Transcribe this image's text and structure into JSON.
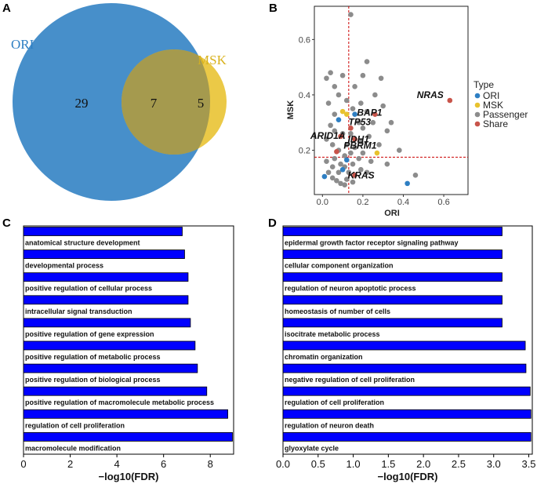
{
  "colors": {
    "ori": "#2e7fc3",
    "msk": "#e8c22e",
    "passenger": "#8c8c8c",
    "share": "#c8544a",
    "bar_fill": "#0000ff",
    "bar_stroke": "#000000",
    "threshold": "#cc0000",
    "ori_text": "#2e7fc3",
    "msk_text": "#d9b21e"
  },
  "chart_data": [
    {
      "panel": "A",
      "type": "venn",
      "sets": [
        {
          "name": "ORI",
          "only": 29
        },
        {
          "name": "MSK",
          "only": 5
        }
      ],
      "intersection": 7,
      "total_ori": 36,
      "total_msk": 12
    },
    {
      "panel": "B",
      "type": "scatter",
      "xlabel": "ORI",
      "ylabel": "MSK",
      "xlim": [
        -0.04,
        0.72
      ],
      "ylim": [
        0.04,
        0.72
      ],
      "xticks": [
        "0.0",
        "0.2",
        "0.4",
        "0.6"
      ],
      "yticks": [
        "0.2",
        "0.4",
        "0.6"
      ],
      "threshold_x": 0.13,
      "threshold_y": 0.175,
      "legend_title": "Type",
      "legend_position": "right",
      "legend": [
        "ORI",
        "MSK",
        "Passenger",
        "Share"
      ],
      "labeled_genes": [
        {
          "gene": "NRAS",
          "x": 0.63,
          "y": 0.38,
          "type": "Share"
        },
        {
          "gene": "BAP1",
          "x": 0.26,
          "y": 0.33,
          "type": "Share"
        },
        {
          "gene": "TP53",
          "x": 0.14,
          "y": 0.28,
          "type": "Share"
        },
        {
          "gene": "IDH1",
          "x": 0.16,
          "y": 0.24,
          "type": "Share"
        },
        {
          "gene": "ARID1A",
          "x": 0.09,
          "y": 0.25,
          "type": "Share"
        },
        {
          "gene": "PBRM1",
          "x": 0.07,
          "y": 0.195,
          "type": "Share"
        },
        {
          "gene": "KRAS",
          "x": 0.16,
          "y": 0.11,
          "type": "Share"
        }
      ],
      "points": [
        {
          "x": 0.14,
          "y": 0.69,
          "type": "Passenger"
        },
        {
          "x": 0.22,
          "y": 0.52,
          "type": "Passenger"
        },
        {
          "x": 0.04,
          "y": 0.48,
          "type": "Passenger"
        },
        {
          "x": 0.02,
          "y": 0.46,
          "type": "Passenger"
        },
        {
          "x": 0.1,
          "y": 0.47,
          "type": "Passenger"
        },
        {
          "x": 0.2,
          "y": 0.47,
          "type": "Passenger"
        },
        {
          "x": 0.29,
          "y": 0.46,
          "type": "Passenger"
        },
        {
          "x": 0.06,
          "y": 0.43,
          "type": "Passenger"
        },
        {
          "x": 0.16,
          "y": 0.43,
          "type": "Passenger"
        },
        {
          "x": 0.08,
          "y": 0.4,
          "type": "Passenger"
        },
        {
          "x": 0.26,
          "y": 0.4,
          "type": "Passenger"
        },
        {
          "x": 0.12,
          "y": 0.38,
          "type": "Passenger"
        },
        {
          "x": 0.03,
          "y": 0.37,
          "type": "Passenger"
        },
        {
          "x": 0.19,
          "y": 0.37,
          "type": "Passenger"
        },
        {
          "x": 0.3,
          "y": 0.36,
          "type": "Passenger"
        },
        {
          "x": 0.15,
          "y": 0.35,
          "type": "Passenger"
        },
        {
          "x": 0.22,
          "y": 0.34,
          "type": "Passenger"
        },
        {
          "x": 0.06,
          "y": 0.33,
          "type": "Passenger"
        },
        {
          "x": 0.1,
          "y": 0.34,
          "type": "MSK"
        },
        {
          "x": 0.16,
          "y": 0.33,
          "type": "ORI"
        },
        {
          "x": 0.12,
          "y": 0.33,
          "type": "MSK"
        },
        {
          "x": 0.08,
          "y": 0.31,
          "type": "ORI"
        },
        {
          "x": 0.34,
          "y": 0.3,
          "type": "Passenger"
        },
        {
          "x": 0.25,
          "y": 0.3,
          "type": "Passenger"
        },
        {
          "x": 0.18,
          "y": 0.3,
          "type": "Passenger"
        },
        {
          "x": 0.04,
          "y": 0.29,
          "type": "Passenger"
        },
        {
          "x": 0.2,
          "y": 0.28,
          "type": "Passenger"
        },
        {
          "x": 0.32,
          "y": 0.27,
          "type": "Passenger"
        },
        {
          "x": 0.06,
          "y": 0.27,
          "type": "Passenger"
        },
        {
          "x": 0.14,
          "y": 0.26,
          "type": "Passenger"
        },
        {
          "x": 0.1,
          "y": 0.26,
          "type": "Passenger"
        },
        {
          "x": 0.23,
          "y": 0.25,
          "type": "Passenger"
        },
        {
          "x": 0.02,
          "y": 0.24,
          "type": "Passenger"
        },
        {
          "x": 0.19,
          "y": 0.23,
          "type": "Passenger"
        },
        {
          "x": 0.28,
          "y": 0.22,
          "type": "Passenger"
        },
        {
          "x": 0.05,
          "y": 0.22,
          "type": "Passenger"
        },
        {
          "x": 0.12,
          "y": 0.22,
          "type": "Passenger"
        },
        {
          "x": 0.16,
          "y": 0.21,
          "type": "Passenger"
        },
        {
          "x": 0.27,
          "y": 0.19,
          "type": "MSK"
        },
        {
          "x": 0.38,
          "y": 0.2,
          "type": "Passenger"
        },
        {
          "x": 0.08,
          "y": 0.2,
          "type": "Passenger"
        },
        {
          "x": 0.14,
          "y": 0.19,
          "type": "Passenger"
        },
        {
          "x": 0.2,
          "y": 0.19,
          "type": "Passenger"
        },
        {
          "x": 0.11,
          "y": 0.18,
          "type": "Passenger"
        },
        {
          "x": 0.06,
          "y": 0.17,
          "type": "Passenger"
        },
        {
          "x": 0.18,
          "y": 0.17,
          "type": "Passenger"
        },
        {
          "x": 0.12,
          "y": 0.165,
          "type": "ORI"
        },
        {
          "x": 0.02,
          "y": 0.16,
          "type": "Passenger"
        },
        {
          "x": 0.24,
          "y": 0.16,
          "type": "Passenger"
        },
        {
          "x": 0.09,
          "y": 0.15,
          "type": "Passenger"
        },
        {
          "x": 0.15,
          "y": 0.15,
          "type": "Passenger"
        },
        {
          "x": 0.32,
          "y": 0.15,
          "type": "Passenger"
        },
        {
          "x": 0.05,
          "y": 0.14,
          "type": "Passenger"
        },
        {
          "x": 0.11,
          "y": 0.14,
          "type": "Passenger"
        },
        {
          "x": 0.19,
          "y": 0.13,
          "type": "Passenger"
        },
        {
          "x": 0.03,
          "y": 0.12,
          "type": "Passenger"
        },
        {
          "x": 0.08,
          "y": 0.12,
          "type": "Passenger"
        },
        {
          "x": 0.13,
          "y": 0.12,
          "type": "Passenger"
        },
        {
          "x": 0.22,
          "y": 0.12,
          "type": "Passenger"
        },
        {
          "x": 0.1,
          "y": 0.13,
          "type": "ORI"
        },
        {
          "x": 0.01,
          "y": 0.105,
          "type": "ORI"
        },
        {
          "x": 0.05,
          "y": 0.1,
          "type": "Passenger"
        },
        {
          "x": 0.07,
          "y": 0.09,
          "type": "Passenger"
        },
        {
          "x": 0.12,
          "y": 0.095,
          "type": "Passenger"
        },
        {
          "x": 0.15,
          "y": 0.085,
          "type": "Passenger"
        },
        {
          "x": 0.09,
          "y": 0.08,
          "type": "Passenger"
        },
        {
          "x": 0.42,
          "y": 0.08,
          "type": "ORI"
        },
        {
          "x": 0.46,
          "y": 0.11,
          "type": "Passenger"
        },
        {
          "x": 0.11,
          "y": 0.075,
          "type": "Passenger"
        }
      ]
    },
    {
      "panel": "C",
      "type": "bar",
      "orientation": "horizontal",
      "xlabel": "−log10(FDR)",
      "xlim": [
        0,
        9
      ],
      "xticks": [
        0,
        2,
        4,
        6,
        8
      ],
      "categories": [
        "anatomical structure development",
        "developmental process",
        "positive regulation of cellular process",
        "intracellular signal transduction",
        "positive regulation of gene expression",
        "positive regulation of metabolic process",
        "positive regulation of biological process",
        "positive regulation of macromolecule metabolic process",
        "regulation of cell proliferation",
        "macromolecule modification"
      ],
      "values": [
        6.8,
        6.9,
        7.05,
        7.05,
        7.15,
        7.35,
        7.45,
        7.85,
        8.75,
        8.95
      ]
    },
    {
      "panel": "D",
      "type": "bar",
      "orientation": "horizontal",
      "xlabel": "−log10(FDR)",
      "xlim": [
        0,
        3.55
      ],
      "xticks": [
        "0.0",
        "0.5",
        "1.0",
        "1.5",
        "2.0",
        "2.5",
        "3.0",
        "3.5"
      ],
      "categories": [
        "epidermal growth factor receptor signaling pathway",
        "cellular component organization",
        "regulation of neuron apoptotic process",
        "homeostasis of number of cells",
        "isocitrate metabolic process",
        "chromatin organization",
        "negative regulation of cell proliferation",
        "regulation of cell proliferation",
        "regulation of neuron death",
        "glyoxylate cycle"
      ],
      "values": [
        3.12,
        3.12,
        3.12,
        3.12,
        3.12,
        3.45,
        3.46,
        3.52,
        3.53,
        3.53
      ]
    }
  ],
  "panels": {
    "a": "A",
    "b": "B",
    "c": "C",
    "d": "D"
  }
}
